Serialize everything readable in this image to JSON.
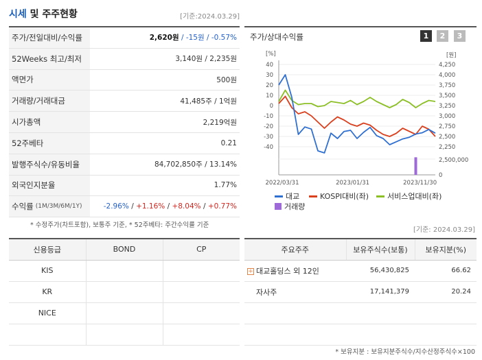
{
  "header": {
    "title_accent": "시세",
    "title_rest": " 및 주주현황",
    "date": "[기준:2024.03.29]"
  },
  "market": {
    "rows": [
      {
        "label": "주가/전일대비/수익률",
        "price": "2,620원",
        "change": " / -15원",
        "rate": " / -0.57%"
      },
      {
        "label": "52Weeks 최고/최저",
        "value": "3,140원 / 2,235원"
      },
      {
        "label": "액면가",
        "value": "500원"
      },
      {
        "label": "거래량/거래대금",
        "value": "41,485주 / 1억원"
      },
      {
        "label": "시가총액",
        "value": "2,219억원"
      },
      {
        "label": "52주베타",
        "value": "0.21"
      },
      {
        "label": "발행주식수/유동비율",
        "value": "84,702,850주 / 13.14%"
      },
      {
        "label": "외국인지분율",
        "value": "1.77%"
      },
      {
        "label": "수익률",
        "sub": "(1M/3M/6M/1Y)",
        "r1": "-2.96%",
        "r2": "+1.16%",
        "r3": "+8.04%",
        "r4": "+0.77%"
      }
    ],
    "note": "* 수정주가(차트포함), 보통주 기준, * 52주베타: 주간수익률 기준"
  },
  "chart_panel": {
    "title": "주가/상대수익률",
    "pages": [
      "1",
      "2",
      "3"
    ],
    "unit_left": "[%]",
    "unit_right": "[원]",
    "legend": {
      "price": "대교",
      "kospi": "KOSPI대비(좌)",
      "sector": "서비스업대비(좌)",
      "volume": "거래량"
    },
    "colors": {
      "price": "#2f6fd0",
      "kospi": "#d9401e",
      "sector": "#8cbf26",
      "volume": "#9d6ad8"
    }
  },
  "chart_data": {
    "type": "line",
    "x_ticks": [
      "2022/03/31",
      "2023/01/31",
      "2023/11/30"
    ],
    "y_left_ticks": [
      "40",
      "30",
      "20",
      "10",
      "0",
      "-10",
      "-20",
      "-30",
      "-40"
    ],
    "y_right_ticks": [
      "4,250",
      "4,000",
      "3,750",
      "3,500",
      "3,250",
      "3,000",
      "2,750",
      "2,500",
      "2,250"
    ],
    "vol_ticks": [
      "2,500,000",
      "0"
    ],
    "ylim_left": [
      -40,
      40
    ],
    "ylim_right": [
      2250,
      4250
    ],
    "series": [
      {
        "name": "대교",
        "axis": "right",
        "values": [
          3750,
          4000,
          3450,
          2550,
          2730,
          2680,
          2150,
          2100,
          2580,
          2450,
          2620,
          2650,
          2450,
          2600,
          2720,
          2520,
          2450,
          2300,
          2370,
          2440,
          2480,
          2560,
          2590,
          2670,
          2580
        ]
      },
      {
        "name": "KOSPI대비(좌)",
        "axis": "left",
        "values": [
          2,
          9,
          -2,
          -8,
          -6,
          -10,
          -16,
          -22,
          -16,
          -11,
          -14,
          -18,
          -20,
          -17,
          -19,
          -24,
          -28,
          -30,
          -27,
          -22,
          -25,
          -28,
          -20,
          -23,
          -30
        ]
      },
      {
        "name": "서비스업대비(좌)",
        "axis": "left",
        "values": [
          4,
          15,
          5,
          1,
          2,
          2,
          -1,
          0,
          4,
          3,
          2,
          5,
          1,
          4,
          8,
          4,
          1,
          -2,
          1,
          6,
          3,
          -2,
          2,
          5,
          4
        ]
      },
      {
        "name": "거래량",
        "axis": "volume",
        "values": [
          0,
          0,
          0,
          0,
          0,
          0,
          0,
          0,
          0,
          0,
          0,
          0,
          0,
          0,
          0,
          0,
          0,
          0,
          0,
          0,
          0,
          3800000,
          0,
          0,
          0
        ]
      }
    ]
  },
  "date2": "[기준: 2024.03.29]",
  "credit": {
    "headers": [
      "신용등급",
      "BOND",
      "CP"
    ],
    "rows": [
      [
        "KIS",
        "",
        ""
      ],
      [
        "KR",
        "",
        ""
      ],
      [
        "NICE",
        "",
        ""
      ],
      [
        "",
        "",
        ""
      ]
    ]
  },
  "holders": {
    "headers": [
      "주요주주",
      "보유주식수(보통)",
      "보유지분(%)"
    ],
    "rows": [
      {
        "name": "대교홀딩스 외 12인",
        "shares": "56,430,825",
        "pct": "66.62"
      },
      {
        "name": "자사주",
        "shares": "17,141,379",
        "pct": "20.24"
      },
      {
        "name": "",
        "shares": "",
        "pct": ""
      },
      {
        "name": "",
        "shares": "",
        "pct": ""
      }
    ],
    "note": "* 보유지분 : 보유지분주식수/지수산정주식수×100"
  }
}
